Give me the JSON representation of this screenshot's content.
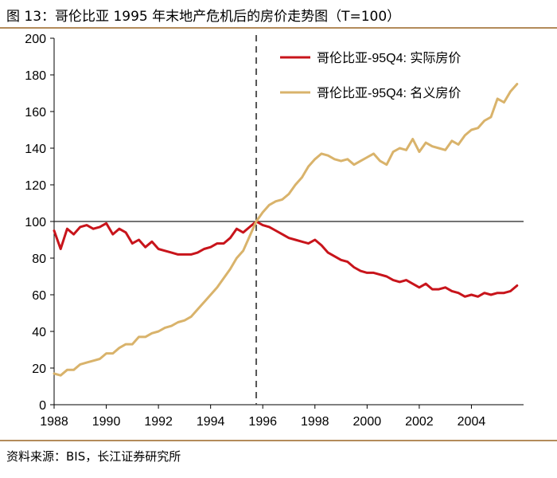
{
  "figure": {
    "title": "图 13：哥伦比亚 1995 年末地产危机后的房价走势图（T=100）",
    "source": "资料来源：BIS，长江证券研究所"
  },
  "chart_data": {
    "type": "line",
    "title": "",
    "xlabel": "",
    "ylabel": "",
    "xlim": [
      1988,
      2006
    ],
    "ylim": [
      0,
      200
    ],
    "x_ticks": [
      1988,
      1990,
      1992,
      1994,
      1996,
      1998,
      2000,
      2002,
      2004
    ],
    "x_tick_labels": [
      "1988",
      "1990",
      "1992",
      "1994",
      "1996",
      "1998",
      "2000",
      "2002",
      "2004"
    ],
    "y_ticks": [
      0,
      20,
      40,
      60,
      80,
      100,
      120,
      140,
      160,
      180,
      200
    ],
    "y_tick_labels": [
      "0",
      "20",
      "40",
      "60",
      "80",
      "100",
      "120",
      "140",
      "160",
      "180",
      "200"
    ],
    "reference_line": {
      "y": 100,
      "color": "#222222"
    },
    "event_line": {
      "x": 1995.75,
      "color": "#555555",
      "style": "dashed"
    },
    "legend_position": "top-right",
    "series": [
      {
        "name": "哥伦比亚-95Q4: 实际房价",
        "color": "#c8141b",
        "x": [
          1988.0,
          1988.25,
          1988.5,
          1988.75,
          1989.0,
          1989.25,
          1989.5,
          1989.75,
          1990.0,
          1990.25,
          1990.5,
          1990.75,
          1991.0,
          1991.25,
          1991.5,
          1991.75,
          1992.0,
          1992.25,
          1992.5,
          1992.75,
          1993.0,
          1993.25,
          1993.5,
          1993.75,
          1994.0,
          1994.25,
          1994.5,
          1994.75,
          1995.0,
          1995.25,
          1995.5,
          1995.75,
          1996.0,
          1996.25,
          1996.5,
          1996.75,
          1997.0,
          1997.25,
          1997.5,
          1997.75,
          1998.0,
          1998.25,
          1998.5,
          1998.75,
          1999.0,
          1999.25,
          1999.5,
          1999.75,
          2000.0,
          2000.25,
          2000.5,
          2000.75,
          2001.0,
          2001.25,
          2001.5,
          2001.75,
          2002.0,
          2002.25,
          2002.5,
          2002.75,
          2003.0,
          2003.25,
          2003.5,
          2003.75,
          2004.0,
          2004.25,
          2004.5,
          2004.75,
          2005.0,
          2005.25,
          2005.5,
          2005.75
        ],
        "values": [
          95,
          85,
          96,
          93,
          97,
          98,
          96,
          97,
          99,
          93,
          96,
          94,
          88,
          90,
          86,
          89,
          85,
          84,
          83,
          82,
          82,
          82,
          83,
          85,
          86,
          88,
          88,
          91,
          96,
          94,
          97,
          100,
          98,
          97,
          95,
          93,
          91,
          90,
          89,
          88,
          90,
          87,
          83,
          81,
          79,
          78,
          75,
          73,
          72,
          72,
          71,
          70,
          68,
          67,
          68,
          66,
          64,
          66,
          63,
          63,
          64,
          62,
          61,
          59,
          60,
          59,
          61,
          60,
          61,
          61,
          62,
          65
        ]
      },
      {
        "name": "哥伦比亚-95Q4: 名义房价",
        "color": "#d9b36b",
        "x": [
          1988.0,
          1988.25,
          1988.5,
          1988.75,
          1989.0,
          1989.25,
          1989.5,
          1989.75,
          1990.0,
          1990.25,
          1990.5,
          1990.75,
          1991.0,
          1991.25,
          1991.5,
          1991.75,
          1992.0,
          1992.25,
          1992.5,
          1992.75,
          1993.0,
          1993.25,
          1993.5,
          1993.75,
          1994.0,
          1994.25,
          1994.5,
          1994.75,
          1995.0,
          1995.25,
          1995.5,
          1995.75,
          1996.0,
          1996.25,
          1996.5,
          1996.75,
          1997.0,
          1997.25,
          1997.5,
          1997.75,
          1998.0,
          1998.25,
          1998.5,
          1998.75,
          1999.0,
          1999.25,
          1999.5,
          1999.75,
          2000.0,
          2000.25,
          2000.5,
          2000.75,
          2001.0,
          2001.25,
          2001.5,
          2001.75,
          2002.0,
          2002.25,
          2002.5,
          2002.75,
          2003.0,
          2003.25,
          2003.5,
          2003.75,
          2004.0,
          2004.25,
          2004.5,
          2004.75,
          2005.0,
          2005.25,
          2005.5,
          2005.75
        ],
        "values": [
          17,
          16,
          19,
          19,
          22,
          23,
          24,
          25,
          28,
          28,
          31,
          33,
          33,
          37,
          37,
          39,
          40,
          42,
          43,
          45,
          46,
          48,
          52,
          56,
          60,
          64,
          69,
          74,
          80,
          84,
          92,
          100,
          105,
          109,
          111,
          112,
          115,
          120,
          124,
          130,
          134,
          137,
          136,
          134,
          133,
          134,
          131,
          133,
          135,
          137,
          133,
          131,
          138,
          140,
          139,
          145,
          138,
          143,
          141,
          140,
          139,
          144,
          142,
          147,
          150,
          151,
          155,
          157,
          167,
          165,
          171,
          175
        ]
      }
    ]
  }
}
